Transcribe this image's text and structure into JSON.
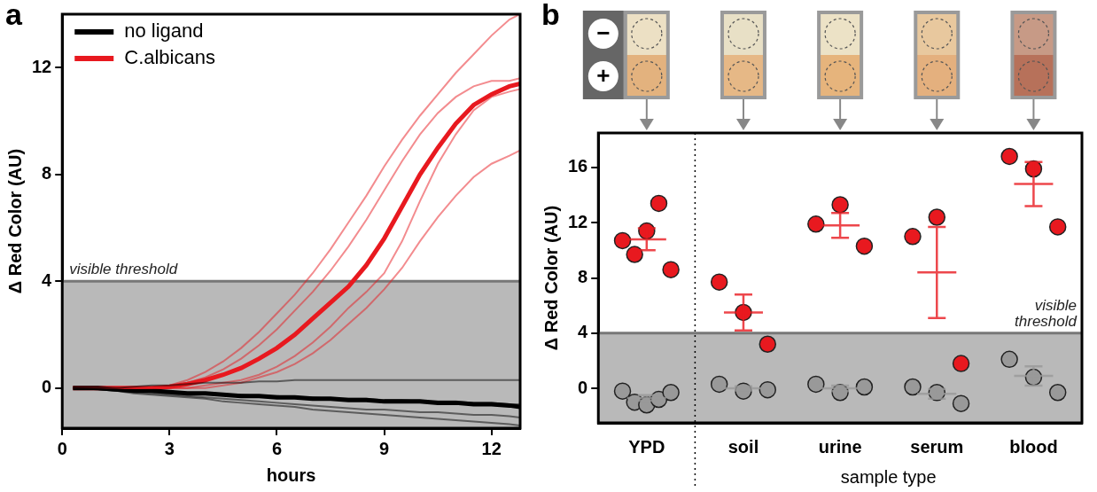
{
  "chart_data": [
    {
      "type": "line",
      "title": "a",
      "x_label": "hours",
      "y_label": "Δ Red Color (AU)",
      "x": [
        0.3,
        1,
        1.5,
        2,
        2.5,
        3,
        3.5,
        4,
        4.5,
        5,
        5.5,
        6,
        6.5,
        7,
        7.5,
        8,
        8.5,
        9,
        9.5,
        10,
        10.5,
        11,
        11.5,
        12,
        12.5,
        12.8
      ],
      "xlim": [
        0,
        12.8
      ],
      "xticks": [
        0,
        3,
        6,
        9,
        12
      ],
      "ylim": [
        -1.5,
        14
      ],
      "yticks": [
        0,
        4,
        8,
        12
      ],
      "grid": false,
      "legend": "upper left",
      "series": [
        {
          "name": "no ligand",
          "color": "#000000",
          "values": [
            0,
            0,
            -0.05,
            -0.1,
            -0.1,
            -0.15,
            -0.2,
            -0.2,
            -0.25,
            -0.3,
            -0.3,
            -0.35,
            -0.35,
            -0.4,
            -0.4,
            -0.45,
            -0.45,
            -0.5,
            -0.5,
            -0.5,
            -0.55,
            -0.55,
            -0.6,
            -0.6,
            -0.65,
            -0.7
          ],
          "replicates": [
            [
              0,
              0,
              0,
              0.05,
              0.1,
              0.1,
              0.15,
              0.2,
              0.2,
              0.2,
              0.25,
              0.25,
              0.3,
              0.3,
              0.3,
              0.3,
              0.3,
              0.3,
              0.3,
              0.3,
              0.3,
              0.3,
              0.3,
              0.3,
              0.3,
              0.3
            ],
            [
              0,
              0,
              -0.05,
              -0.1,
              -0.1,
              -0.15,
              -0.2,
              -0.2,
              -0.25,
              -0.25,
              -0.3,
              -0.3,
              -0.35,
              -0.35,
              -0.4,
              -0.4,
              -0.4,
              -0.45,
              -0.45,
              -0.5,
              -0.5,
              -0.5,
              -0.55,
              -0.55,
              -0.6,
              -0.6
            ],
            [
              0,
              -0.05,
              -0.1,
              -0.15,
              -0.2,
              -0.25,
              -0.3,
              -0.35,
              -0.4,
              -0.45,
              -0.5,
              -0.55,
              -0.6,
              -0.65,
              -0.7,
              -0.75,
              -0.8,
              -0.8,
              -0.85,
              -0.9,
              -0.9,
              -0.95,
              -1.0,
              -1.0,
              -1.05,
              -1.1
            ],
            [
              0,
              -0.05,
              -0.1,
              -0.2,
              -0.25,
              -0.3,
              -0.35,
              -0.4,
              -0.5,
              -0.55,
              -0.6,
              -0.65,
              -0.7,
              -0.8,
              -0.85,
              -0.9,
              -0.95,
              -1.0,
              -1.05,
              -1.1,
              -1.15,
              -1.2,
              -1.25,
              -1.3,
              -1.35,
              -1.4
            ]
          ]
        },
        {
          "name": "C.albicans",
          "color": "#e8191f",
          "values": [
            0,
            0,
            0,
            0,
            0,
            0.05,
            0.15,
            0.3,
            0.5,
            0.75,
            1.1,
            1.5,
            2.0,
            2.6,
            3.2,
            3.8,
            4.6,
            5.6,
            6.8,
            8.0,
            9.0,
            9.9,
            10.6,
            11.0,
            11.3,
            11.4
          ],
          "replicates": [
            [
              0,
              0,
              0,
              0,
              0,
              0.1,
              0.3,
              0.6,
              1.0,
              1.5,
              2.1,
              2.8,
              3.5,
              4.3,
              5.2,
              6.2,
              7.2,
              8.3,
              9.3,
              10.2,
              11.0,
              11.8,
              12.5,
              13.2,
              13.8,
              14.0
            ],
            [
              0,
              0,
              0,
              0,
              0,
              0.05,
              0.2,
              0.4,
              0.7,
              1.1,
              1.6,
              2.2,
              2.9,
              3.6,
              4.4,
              5.3,
              6.3,
              7.4,
              8.5,
              9.5,
              10.3,
              10.9,
              11.3,
              11.5,
              11.5,
              11.6
            ],
            [
              0,
              0,
              0,
              0,
              0,
              0,
              0,
              0.1,
              0.2,
              0.3,
              0.5,
              0.8,
              1.2,
              1.7,
              2.3,
              3.0,
              3.6,
              4.3,
              5.5,
              7.0,
              8.4,
              9.5,
              10.4,
              10.9,
              11.1,
              11.2
            ],
            [
              0,
              0,
              0,
              0,
              0,
              0,
              0,
              0,
              0.1,
              0.2,
              0.4,
              0.6,
              0.9,
              1.3,
              1.8,
              2.4,
              3.0,
              3.7,
              4.5,
              5.5,
              6.4,
              7.2,
              7.9,
              8.4,
              8.7,
              8.9
            ]
          ]
        }
      ],
      "annotations": [
        {
          "text": "visible threshold",
          "y": 4
        }
      ]
    },
    {
      "type": "scatter",
      "title": "b",
      "x_label": "sample type",
      "y_label": "Δ Red Color (AU)",
      "categories": [
        "YPD",
        "soil",
        "urine",
        "serum",
        "blood"
      ],
      "swatch_labels": [
        "−",
        "+"
      ],
      "ylim": [
        -2.5,
        18.5
      ],
      "yticks": [
        0,
        4,
        8,
        12,
        16
      ],
      "grid": false,
      "marker": "circle",
      "series": [
        {
          "color": "#999999",
          "values": [
            [
              -0.2,
              -1.0,
              -1.2,
              -0.8,
              -0.3
            ],
            [
              0.3,
              -0.2,
              -0.1
            ],
            [
              0.3,
              -0.3,
              0.1
            ],
            [
              0.1,
              -0.3,
              -1.1
            ],
            [
              2.1,
              0.8,
              -0.3
            ]
          ],
          "mean": [
            -0.7,
            0.0,
            0.0,
            -0.4,
            0.9
          ],
          "error": [
            0.2,
            0.15,
            0.2,
            0.35,
            0.7
          ]
        },
        {
          "color": "#e8191f",
          "values": [
            [
              10.7,
              9.7,
              11.4,
              13.4,
              8.6
            ],
            [
              7.7,
              5.5,
              3.2
            ],
            [
              11.9,
              13.3,
              10.3
            ],
            [
              11.0,
              12.4,
              1.8
            ],
            [
              16.8,
              15.9,
              11.7
            ]
          ],
          "mean": [
            10.8,
            5.5,
            11.8,
            8.4,
            14.8
          ],
          "error": [
            0.8,
            1.3,
            0.9,
            3.3,
            1.6
          ]
        }
      ],
      "annotations": [
        {
          "text": "visible threshold",
          "y": 4
        }
      ]
    }
  ]
}
